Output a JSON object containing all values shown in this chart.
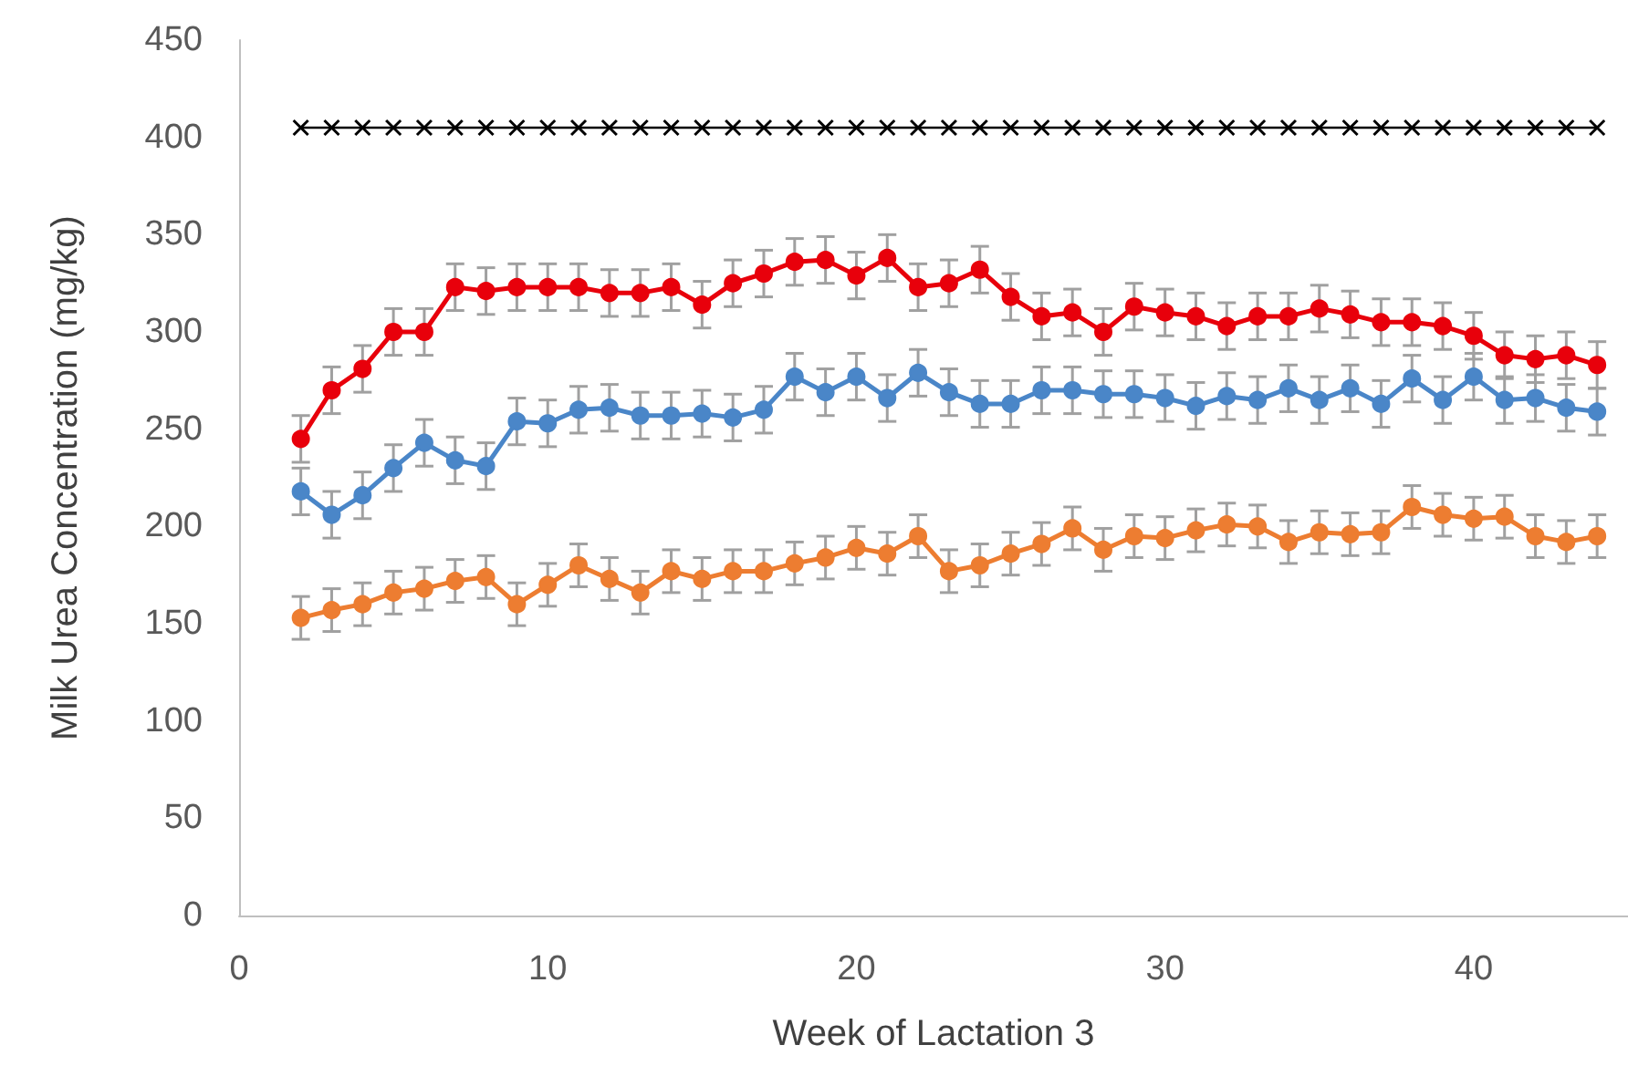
{
  "chart_data": {
    "type": "line",
    "xlabel": "Week of Lactation 3",
    "ylabel": "Milk Urea Concentration (mg/kg)",
    "x": [
      2,
      3,
      4,
      5,
      6,
      7,
      8,
      9,
      10,
      11,
      12,
      13,
      14,
      15,
      16,
      17,
      18,
      19,
      20,
      21,
      22,
      23,
      24,
      25,
      26,
      27,
      28,
      29,
      30,
      31,
      32,
      33,
      34,
      35,
      36,
      37,
      38,
      39,
      40,
      41,
      42,
      43,
      44
    ],
    "xlim": [
      0,
      45
    ],
    "xticks": [
      0,
      10,
      20,
      30,
      40
    ],
    "ylim": [
      0,
      450
    ],
    "yticks": [
      0,
      50,
      100,
      150,
      200,
      250,
      300,
      350,
      400,
      450
    ],
    "grid": false,
    "series": [
      {
        "color": "#000000",
        "marker": "cross",
        "values": [
          405,
          405,
          405,
          405,
          405,
          405,
          405,
          405,
          405,
          405,
          405,
          405,
          405,
          405,
          405,
          405,
          405,
          405,
          405,
          405,
          405,
          405,
          405,
          405,
          405,
          405,
          405,
          405,
          405,
          405,
          405,
          405,
          405,
          405,
          405,
          405,
          405,
          405,
          405,
          405,
          405,
          405,
          405
        ]
      },
      {
        "color": "#e8000b",
        "marker": "circle",
        "values": [
          245,
          270,
          281,
          300,
          300,
          323,
          321,
          323,
          323,
          323,
          320,
          320,
          323,
          314,
          325,
          330,
          336,
          337,
          329,
          338,
          323,
          325,
          332,
          318,
          308,
          310,
          300,
          313,
          310,
          308,
          303,
          308,
          308,
          312,
          309,
          305,
          305,
          303,
          298,
          288,
          286,
          288,
          283
        ],
        "errors": [
          12,
          12,
          12,
          12,
          12,
          12,
          12,
          12,
          12,
          12,
          12,
          12,
          12,
          12,
          12,
          12,
          12,
          12,
          12,
          12,
          12,
          12,
          12,
          12,
          12,
          12,
          12,
          12,
          12,
          12,
          12,
          12,
          12,
          12,
          12,
          12,
          12,
          12,
          12,
          12,
          12,
          12,
          12
        ]
      },
      {
        "color": "#4a86c8",
        "marker": "circle",
        "values": [
          218,
          206,
          216,
          230,
          243,
          234,
          231,
          254,
          253,
          260,
          261,
          257,
          257,
          258,
          256,
          260,
          277,
          269,
          277,
          266,
          279,
          269,
          263,
          263,
          270,
          270,
          268,
          268,
          266,
          262,
          267,
          265,
          271,
          265,
          271,
          263,
          276,
          265,
          277,
          265,
          266,
          261,
          259
        ],
        "errors": [
          12,
          12,
          12,
          12,
          12,
          12,
          12,
          12,
          12,
          12,
          12,
          12,
          12,
          12,
          12,
          12,
          12,
          12,
          12,
          12,
          12,
          12,
          12,
          12,
          12,
          12,
          12,
          12,
          12,
          12,
          12,
          12,
          12,
          12,
          12,
          12,
          12,
          12,
          12,
          12,
          12,
          12,
          12
        ]
      },
      {
        "color": "#ed7d31",
        "marker": "circle",
        "values": [
          153,
          157,
          160,
          166,
          168,
          172,
          174,
          160,
          170,
          180,
          173,
          166,
          177,
          173,
          177,
          177,
          181,
          184,
          189,
          186,
          195,
          177,
          180,
          186,
          191,
          199,
          188,
          195,
          194,
          198,
          201,
          200,
          192,
          197,
          196,
          197,
          210,
          206,
          204,
          205,
          195,
          192,
          195
        ],
        "errors": [
          11,
          11,
          11,
          11,
          11,
          11,
          11,
          11,
          11,
          11,
          11,
          11,
          11,
          11,
          11,
          11,
          11,
          11,
          11,
          11,
          11,
          11,
          11,
          11,
          11,
          11,
          11,
          11,
          11,
          11,
          11,
          11,
          11,
          11,
          11,
          11,
          11,
          11,
          11,
          11,
          11,
          11,
          11
        ]
      }
    ]
  }
}
